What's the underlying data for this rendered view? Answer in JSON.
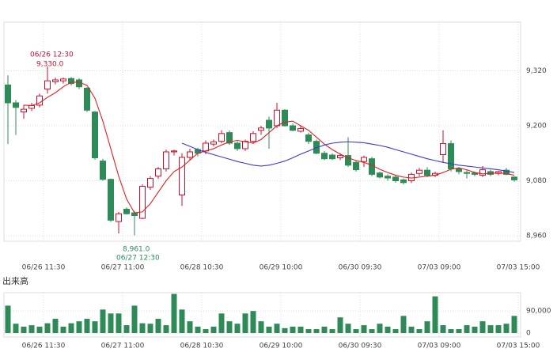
{
  "chart_data": {
    "type": "candlestick",
    "x_labels": [
      "06/26 11:30",
      "06/27 11:00",
      "06/28 10:30",
      "06/29 10:00",
      "06/30 09:30",
      "07/03 09:00",
      "07/03 15:00"
    ],
    "open": [
      9289,
      9250,
      9230,
      9238,
      9245,
      9280,
      9296,
      9298,
      9303,
      9300,
      9282,
      9230,
      9123,
      9083,
      8991,
      9018,
      9010,
      8998,
      9066,
      9090,
      9106,
      9143,
      9049,
      9131,
      9148,
      9145,
      9160,
      9166,
      9185,
      9162,
      9150,
      9166,
      9190,
      9212,
      9200,
      9234,
      9200,
      9188,
      9180,
      9166,
      9140,
      9136,
      9130,
      9135,
      9120,
      9122,
      9128,
      9097,
      9090,
      9088,
      9082,
      9080,
      9096,
      9103,
      9092,
      9137,
      9161,
      9106,
      9098,
      9097,
      9092,
      9100,
      9096,
      9103,
      9088
    ],
    "high": [
      9310,
      9256,
      9245,
      9250,
      9270,
      9330,
      9305,
      9305,
      9306,
      9304,
      9284,
      9232,
      9128,
      9085,
      9012,
      9022,
      9014,
      9072,
      9090,
      9110,
      9148,
      9148,
      9140,
      9150,
      9152,
      9168,
      9170,
      9190,
      9190,
      9166,
      9170,
      9188,
      9200,
      9220,
      9250,
      9236,
      9205,
      9200,
      9185,
      9170,
      9145,
      9140,
      9140,
      9175,
      9125,
      9135,
      9132,
      9100,
      9094,
      9092,
      9085,
      9098,
      9108,
      9110,
      9100,
      9190,
      9168,
      9110,
      9104,
      9100,
      9112,
      9104,
      9102,
      9108,
      9090
    ],
    "low": [
      9160,
      9180,
      9215,
      9232,
      9240,
      9270,
      9290,
      9292,
      9288,
      9280,
      9230,
      9126,
      9080,
      8990,
      8965,
      9006,
      8961,
      8996,
      9060,
      9084,
      9100,
      9135,
      9025,
      9125,
      9133,
      9138,
      9155,
      9162,
      9158,
      9145,
      9145,
      9160,
      9180,
      9150,
      9195,
      9198,
      9188,
      9185,
      9160,
      9138,
      9125,
      9125,
      9125,
      9110,
      9100,
      9110,
      9090,
      9085,
      9080,
      9076,
      9072,
      9075,
      9090,
      9088,
      9088,
      9120,
      9100,
      9094,
      9085,
      9090,
      9088,
      9090,
      9092,
      9092,
      9078
    ],
    "close": [
      9250,
      9240,
      9236,
      9244,
      9265,
      9298,
      9300,
      9302,
      9292,
      9285,
      9234,
      9130,
      9083,
      8994,
      9008,
      9008,
      9004,
      9068,
      9085,
      9106,
      9143,
      9145,
      9131,
      9143,
      9140,
      9162,
      9165,
      9183,
      9162,
      9150,
      9166,
      9183,
      9195,
      9195,
      9234,
      9200,
      9190,
      9194,
      9166,
      9140,
      9128,
      9128,
      9135,
      9114,
      9104,
      9131,
      9094,
      9088,
      9086,
      9080,
      9076,
      9094,
      9103,
      9092,
      9096,
      9161,
      9106,
      9100,
      9096,
      9094,
      9104,
      9094,
      9100,
      9094,
      9082
    ],
    "up_color": "#c8102e",
    "down_color": "#2e8b57",
    "series": [
      {
        "color": "#e02020",
        "values": [
          null,
          null,
          9245,
          9244,
          9250,
          9262,
          9272,
          9285,
          9295,
          9295,
          9288,
          9260,
          9210,
          9150,
          9090,
          9040,
          9010,
          9012,
          9030,
          9055,
          9080,
          9100,
          9110,
          9125,
          9140,
          9145,
          9150,
          9158,
          9165,
          9168,
          9165,
          9162,
          9170,
          9185,
          9200,
          9208,
          9210,
          9200,
          9190,
          9175,
          9160,
          9148,
          9138,
          9130,
          9124,
          9120,
          9114,
          9105,
          9098,
          9092,
          9088,
          9086,
          9088,
          9090,
          9092,
          9098,
          9105,
          9108,
          9104,
          9098,
          9095,
          9096,
          9097,
          9096,
          9092
        ]
      },
      {
        "color": "#3a3ad0",
        "values": [
          null,
          null,
          null,
          null,
          null,
          null,
          null,
          null,
          null,
          null,
          null,
          null,
          null,
          null,
          null,
          null,
          null,
          null,
          null,
          null,
          null,
          null,
          9162,
          9155,
          9148,
          9142,
          9137,
          9132,
          9127,
          9122,
          9118,
          9114,
          9112,
          9114,
          9118,
          9123,
          9130,
          9138,
          9145,
          9152,
          9158,
          9162,
          9164,
          9165,
          9164,
          9163,
          9160,
          9157,
          9153,
          9148,
          9143,
          9138,
          9133,
          9128,
          9124,
          9120,
          9117,
          9114,
          9112,
          9110,
          9108,
          9106,
          9104,
          9101,
          9098
        ]
      }
    ],
    "ylim": [
      8948,
      9426
    ],
    "yticks": [
      {
        "value": 8960,
        "label": "8,960"
      },
      {
        "value": 9080,
        "label": "9,080"
      },
      {
        "value": 9200,
        "label": "9,200"
      },
      {
        "value": 9320,
        "label": "9,320"
      }
    ],
    "high_annotation": {
      "time": "06/26 12:30",
      "price": "9,330.0"
    },
    "low_annotation": {
      "price": "8,961.0",
      "time": "06/27 12:30"
    },
    "volume": {
      "label": "出来高",
      "color": "#2e8b57",
      "values": [
        112000,
        38000,
        26000,
        32000,
        26000,
        40000,
        58000,
        26000,
        40000,
        48000,
        58000,
        48000,
        96000,
        80000,
        80000,
        32000,
        112000,
        40000,
        38000,
        58000,
        32000,
        160000,
        96000,
        48000,
        26000,
        16000,
        26000,
        80000,
        48000,
        38000,
        80000,
        90000,
        48000,
        26000,
        38000,
        20000,
        26000,
        26000,
        16000,
        16000,
        26000,
        16000,
        64000,
        38000,
        16000,
        32000,
        16000,
        38000,
        26000,
        16000,
        70000,
        26000,
        16000,
        48000,
        150000,
        32000,
        16000,
        16000,
        32000,
        26000,
        48000,
        32000,
        32000,
        38000,
        70000
      ],
      "ylim": [
        0,
        165000
      ],
      "yticks": [
        0,
        {
          "value": 90000,
          "label": "90,000"
        }
      ]
    }
  }
}
